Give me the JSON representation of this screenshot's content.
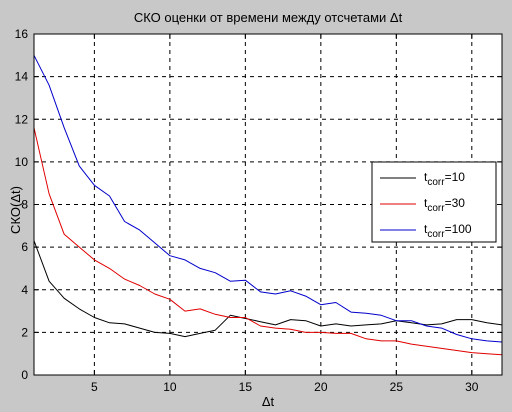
{
  "chart_data": {
    "type": "line",
    "title": "СКО оценки от времени между отсчетами Δt",
    "xlabel": "Δt",
    "ylabel": "СКО(Δt)",
    "xlim": [
      1,
      32
    ],
    "ylim": [
      0,
      16
    ],
    "xticks": [
      5,
      10,
      15,
      20,
      25,
      30
    ],
    "yticks": [
      0,
      2,
      4,
      6,
      8,
      10,
      12,
      14,
      16
    ],
    "grid": true,
    "legend_position": "right",
    "x": [
      1,
      2,
      3,
      4,
      5,
      6,
      7,
      8,
      9,
      10,
      11,
      12,
      13,
      14,
      15,
      16,
      17,
      18,
      19,
      20,
      21,
      22,
      23,
      24,
      25,
      26,
      27,
      28,
      29,
      30,
      31,
      32
    ],
    "series": [
      {
        "legend_base": "t",
        "legend_sub": "corr",
        "legend_value": "=10",
        "color": "#000000",
        "values": [
          6.3,
          4.4,
          3.6,
          3.1,
          2.7,
          2.45,
          2.4,
          2.2,
          2.0,
          1.95,
          1.8,
          1.95,
          2.1,
          2.8,
          2.65,
          2.5,
          2.35,
          2.6,
          2.55,
          2.3,
          2.4,
          2.3,
          2.35,
          2.4,
          2.55,
          2.45,
          2.35,
          2.4,
          2.6,
          2.6,
          2.45,
          2.35
        ]
      },
      {
        "legend_base": "t",
        "legend_sub": "corr",
        "legend_value": "=30",
        "color": "#e00000",
        "values": [
          11.6,
          8.5,
          6.6,
          6.0,
          5.4,
          5.0,
          4.5,
          4.2,
          3.8,
          3.55,
          3.0,
          3.1,
          2.85,
          2.7,
          2.7,
          2.3,
          2.2,
          2.15,
          2.0,
          2.0,
          1.95,
          1.95,
          1.7,
          1.6,
          1.6,
          1.45,
          1.35,
          1.25,
          1.15,
          1.05,
          1.0,
          0.95
        ]
      },
      {
        "legend_base": "t",
        "legend_sub": "corr",
        "legend_value": "=100",
        "color": "#0000cc",
        "values": [
          15.0,
          13.6,
          11.6,
          9.8,
          8.9,
          8.4,
          7.2,
          6.8,
          6.2,
          5.6,
          5.4,
          5.0,
          4.8,
          4.4,
          4.45,
          3.9,
          3.8,
          3.95,
          3.7,
          3.3,
          3.4,
          2.95,
          2.9,
          2.8,
          2.55,
          2.55,
          2.3,
          2.2,
          1.9,
          1.7,
          1.6,
          1.55
        ]
      }
    ]
  }
}
